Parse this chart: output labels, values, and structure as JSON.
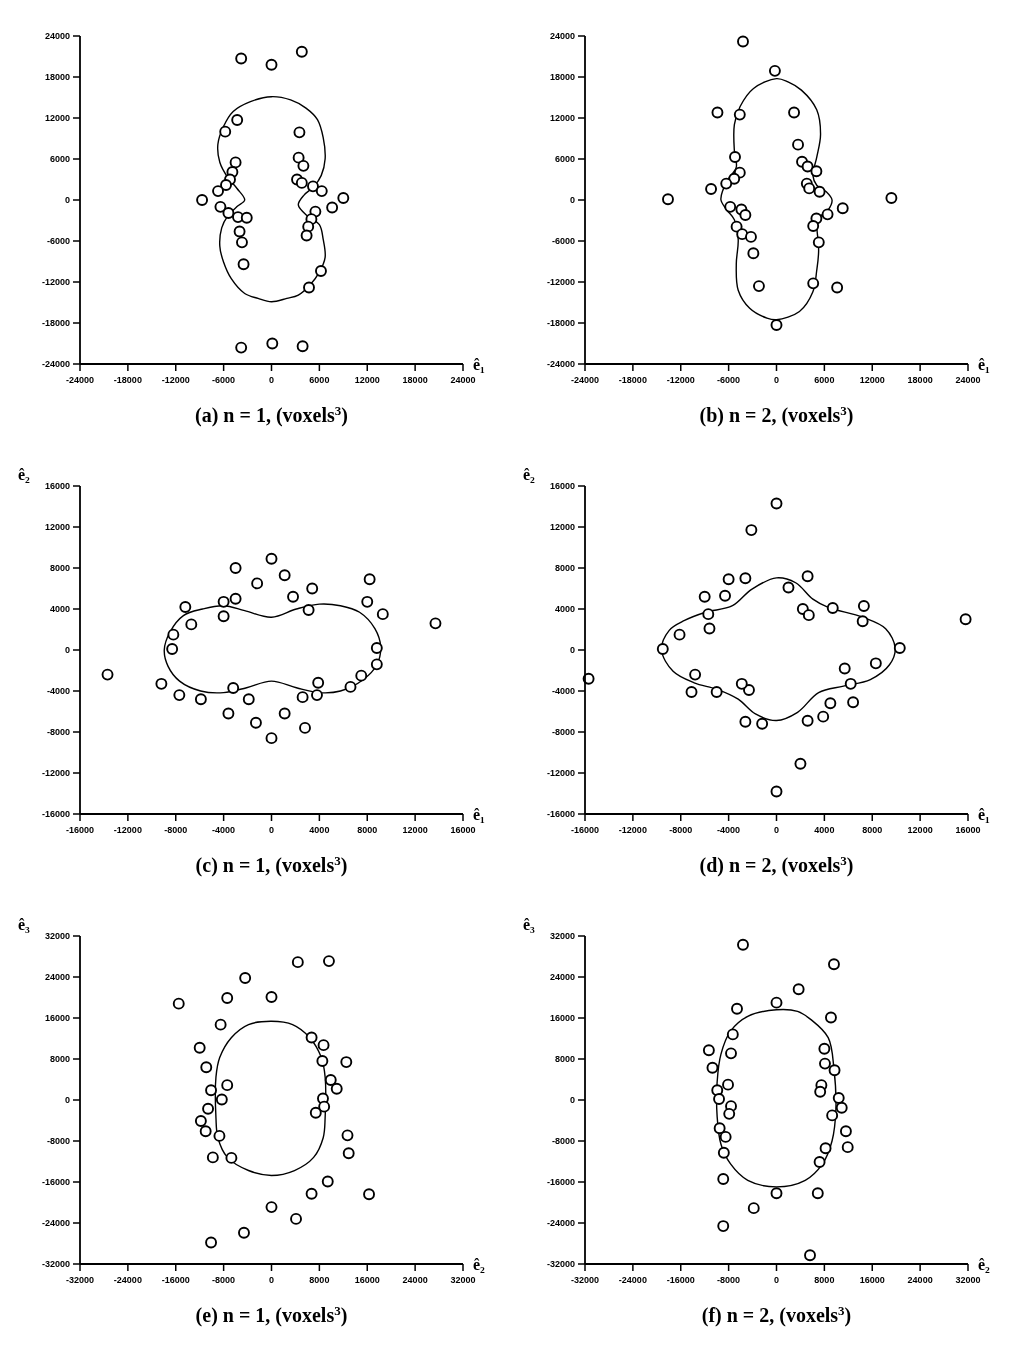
{
  "chart_data": [
    {
      "type": "scatter",
      "title": "(a) n = 1, (voxels$^{3}$)",
      "xlabel": "ê₁",
      "xlim": [
        -24000,
        24000
      ],
      "ylim": [
        -24000,
        24000
      ],
      "xticks": [
        -24000,
        -18000,
        -12000,
        -6000,
        0,
        6000,
        12000,
        18000,
        24000
      ],
      "yticks": [
        -24000,
        -18000,
        -12000,
        -6000,
        0,
        6000,
        12000,
        18000,
        24000
      ],
      "series": [
        {
          "marker": "circle",
          "color": "#000000",
          "x": [
            -3800,
            0,
            3800,
            -4300,
            -5800,
            3500,
            -4500,
            -4900,
            -5200,
            -5700,
            -6700,
            -8700,
            -6400,
            -5400,
            -4200,
            -3100,
            -4000,
            -3700,
            -3500,
            3400,
            4000,
            3200,
            3800,
            5200,
            6300,
            9000,
            7600,
            5500,
            5000,
            4600,
            4400,
            6200,
            4700,
            -3800,
            100,
            3900
          ],
          "values": [
            20700,
            19800,
            21700,
            11700,
            10000,
            9900,
            5500,
            4100,
            3000,
            2200,
            1300,
            0,
            -1000,
            -1900,
            -2500,
            -2600,
            -4600,
            -6200,
            -9400,
            6200,
            5000,
            3000,
            2500,
            2000,
            1300,
            300,
            -1100,
            -1700,
            -2800,
            -3900,
            -5200,
            -10400,
            -12800,
            -21600,
            -21000,
            -21400
          ]
        }
      ]
    },
    {
      "type": "scatter",
      "title": "(b) n = 2,  (voxels$^{3}$)",
      "xlabel": "ê₁",
      "xlim": [
        -24000,
        24000
      ],
      "ylim": [
        -24000,
        24000
      ],
      "xticks": [
        -24000,
        -18000,
        -12000,
        -6000,
        0,
        6000,
        12000,
        18000,
        24000
      ],
      "yticks": [
        -24000,
        -18000,
        -12000,
        -6000,
        0,
        6000,
        12000,
        18000,
        24000
      ],
      "series": [
        {
          "marker": "circle",
          "color": "#000000",
          "x": [
            -4200,
            -200,
            -7400,
            -4600,
            2200,
            2700,
            -5200,
            -4600,
            -5300,
            -6300,
            -8200,
            -13600,
            14400,
            3200,
            3900,
            5000,
            3800,
            4100,
            5400,
            -5800,
            -4400,
            -3900,
            -5000,
            -4300,
            -3200,
            -2900,
            -2200,
            8300,
            6400,
            5000,
            4600,
            5300,
            4600,
            7600,
            0
          ],
          "values": [
            23200,
            18900,
            12800,
            12500,
            12800,
            8100,
            6300,
            4000,
            3100,
            2400,
            1600,
            100,
            300,
            5600,
            4900,
            4200,
            2400,
            1700,
            1200,
            -1000,
            -1400,
            -2200,
            -3900,
            -5000,
            -5400,
            -7800,
            -12600,
            -1200,
            -2100,
            -2700,
            -3800,
            -6200,
            -12200,
            -12800,
            -18300
          ]
        }
      ]
    },
    {
      "type": "scatter",
      "title": "(c) n = 1,  (voxels$^{3}$)",
      "xlabel": "ê₁",
      "ylabel": "ê₂",
      "xlim": [
        -16000,
        16000
      ],
      "ylim": [
        -16000,
        16000
      ],
      "xticks": [
        -16000,
        -12000,
        -8000,
        -4000,
        0,
        4000,
        8000,
        12000,
        16000
      ],
      "yticks": [
        -16000,
        -12000,
        -8000,
        -4000,
        0,
        4000,
        8000,
        12000,
        16000
      ],
      "series": [
        {
          "marker": "circle",
          "color": "#000000",
          "x": [
            0,
            -3000,
            1100,
            -1200,
            3400,
            1800,
            -3000,
            -4000,
            -7200,
            -4000,
            -6700,
            -8200,
            -8300,
            3100,
            8200,
            8000,
            9300,
            13700,
            8800,
            8800,
            7500,
            6600,
            3900,
            3800,
            2600,
            -13700,
            -9200,
            -7700,
            -5900,
            -3200,
            -1900,
            -3600,
            -1300,
            0,
            1100,
            2800
          ],
          "values": [
            8900,
            8000,
            7300,
            6500,
            6000,
            5200,
            5000,
            4700,
            4200,
            3300,
            2500,
            1500,
            100,
            3900,
            6900,
            4700,
            3500,
            2600,
            200,
            -1400,
            -2500,
            -3600,
            -3200,
            -4400,
            -4600,
            -2400,
            -3300,
            -4400,
            -4800,
            -3700,
            -4800,
            -6200,
            -7100,
            -8600,
            -6200,
            -7600
          ]
        }
      ]
    },
    {
      "type": "scatter",
      "title": "(d) n = 2,  (voxels$^{3}$)",
      "xlabel": "ê₁",
      "ylabel": "ê₂",
      "xlim": [
        -16000,
        16000
      ],
      "ylim": [
        -16000,
        16000
      ],
      "xticks": [
        -16000,
        -12000,
        -8000,
        -4000,
        0,
        4000,
        8000,
        12000,
        16000
      ],
      "yticks": [
        -16000,
        -12000,
        -8000,
        -4000,
        0,
        4000,
        8000,
        12000,
        16000
      ],
      "series": [
        {
          "marker": "circle",
          "color": "#000000",
          "x": [
            0,
            -2100,
            -4000,
            -2600,
            2600,
            -6000,
            -4300,
            1000,
            -5700,
            -5600,
            -8100,
            -9500,
            2200,
            2700,
            4700,
            7300,
            7200,
            15800,
            10300,
            8300,
            5700,
            6200,
            4500,
            6400,
            3900,
            2600,
            -1200,
            -2600,
            -2300,
            -2900,
            -5000,
            -7100,
            -6800,
            -15700,
            2000,
            0
          ],
          "values": [
            14300,
            11700,
            6900,
            7000,
            7200,
            5200,
            5300,
            6100,
            3500,
            2100,
            1500,
            100,
            4000,
            3400,
            4100,
            4300,
            2800,
            3000,
            200,
            -1300,
            -1800,
            -3300,
            -5200,
            -5100,
            -6500,
            -6900,
            -7200,
            -7000,
            -3900,
            -3300,
            -4100,
            -4100,
            -2400,
            -2800,
            -11100,
            -13800
          ]
        }
      ]
    },
    {
      "type": "scatter",
      "title": "(e) n = 1,  (voxels$^{3}$)",
      "xlabel": "ê₂",
      "ylabel": "ê₃",
      "xlim": [
        -32000,
        32000
      ],
      "ylim": [
        -32000,
        32000
      ],
      "xticks": [
        -32000,
        -24000,
        -16000,
        -8000,
        0,
        8000,
        16000,
        24000,
        32000
      ],
      "yticks": [
        -32000,
        -24000,
        -16000,
        -8000,
        0,
        8000,
        16000,
        24000,
        32000
      ],
      "series": [
        {
          "marker": "circle",
          "color": "#000000",
          "x": [
            4400,
            9600,
            -4400,
            -15500,
            -7400,
            0,
            -8500,
            6700,
            8700,
            -12000,
            8500,
            12500,
            -10900,
            9900,
            10900,
            -7400,
            -10100,
            -8300,
            -10600,
            -11800,
            -11000,
            -8700,
            -9800,
            -6700,
            8600,
            8800,
            7400,
            12700,
            12900,
            9400,
            6700,
            16300,
            0,
            4100,
            -4600,
            -10100
          ],
          "values": [
            26900,
            27100,
            23800,
            18800,
            19900,
            20100,
            14700,
            12200,
            10700,
            10200,
            7600,
            7400,
            6400,
            3900,
            2200,
            2900,
            1900,
            100,
            -1700,
            -4100,
            -6100,
            -7000,
            -11200,
            -11300,
            300,
            -1300,
            -2500,
            -6900,
            -10400,
            -15900,
            -18300,
            -18400,
            -20900,
            -23200,
            -25900,
            -27800
          ]
        }
      ]
    },
    {
      "type": "scatter",
      "title": "(f) n = 2,  (voxels$^{3}$)",
      "xlabel": "ê₂",
      "ylabel": "ê₃",
      "xlim": [
        -32000,
        32000
      ],
      "ylim": [
        -32000,
        32000
      ],
      "xticks": [
        -32000,
        -24000,
        -16000,
        -8000,
        0,
        8000,
        16000,
        24000,
        32000
      ],
      "yticks": [
        -32000,
        -24000,
        -16000,
        -8000,
        0,
        8000,
        16000,
        24000,
        32000
      ],
      "series": [
        {
          "marker": "circle",
          "color": "#000000",
          "x": [
            -5600,
            9600,
            3700,
            0,
            -6600,
            9100,
            -7300,
            -11300,
            -7600,
            8000,
            8100,
            -10700,
            9700,
            -8100,
            7500,
            7300,
            -9900,
            -9600,
            10400,
            -7600,
            -7900,
            10900,
            9300,
            -9500,
            -8500,
            11600,
            -8800,
            8200,
            7200,
            -8900,
            0,
            6900,
            -3800,
            -8900,
            5600,
            11900
          ],
          "values": [
            30300,
            26500,
            21600,
            19000,
            17800,
            16100,
            12800,
            9700,
            9100,
            10000,
            7100,
            6300,
            5800,
            3000,
            2900,
            1600,
            1900,
            200,
            400,
            -1200,
            -2700,
            -1500,
            -3000,
            -5500,
            -7200,
            -6100,
            -10300,
            -9400,
            -12100,
            -15400,
            -18200,
            -18200,
            -21100,
            -24600,
            -30300,
            -9200
          ]
        }
      ]
    }
  ]
}
